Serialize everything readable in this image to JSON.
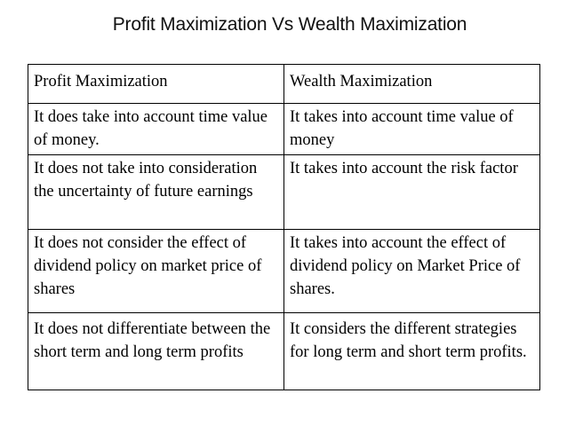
{
  "title": "Profit Maximization Vs Wealth Maximization",
  "table": {
    "headers": [
      "Profit Maximization",
      "Wealth Maximization"
    ],
    "rows": [
      [
        "It does take into account time value of money.",
        "It takes into account time value of money"
      ],
      [
        "It does not take into consideration the uncertainty of future earnings",
        "It takes into account the risk factor"
      ],
      [
        "It does not consider the effect of dividend policy on market price of shares",
        "It takes into account the effect of dividend policy on Market Price of shares."
      ],
      [
        "It does not differentiate between the short term and long term profits",
        "It considers the different strategies for long term and short term profits."
      ]
    ]
  }
}
